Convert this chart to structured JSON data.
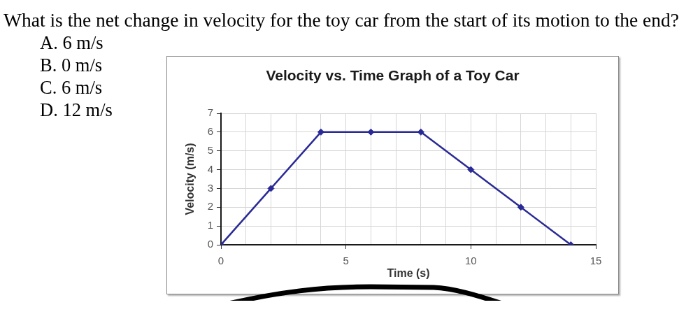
{
  "chart_data": {
    "type": "line",
    "title": "Velocity vs. Time Graph of a Toy Car",
    "xlabel": "Time (s)",
    "ylabel": "Velocity (m/s)",
    "annotations": [
      "What is the net change in velocity for the toy car from the start of its motion to the end?",
      "A. 6 m/s",
      "B. 0 m/s",
      "C. 6 m/s",
      "D. 12 m/s"
    ],
    "x": [
      0,
      2,
      4,
      6,
      8,
      10,
      12,
      14
    ],
    "series": [
      {
        "color": "#2a2a96",
        "values": [
          0,
          3,
          6,
          6,
          6,
          4,
          2,
          0
        ]
      }
    ],
    "xlim": [
      0,
      15
    ],
    "xticks": [
      0,
      {
        "value": 1,
        "label": null
      },
      {
        "value": 2,
        "label": null
      },
      {
        "value": 3,
        "label": null
      },
      {
        "value": 4,
        "label": null
      },
      5,
      {
        "value": 6,
        "label": null
      },
      {
        "value": 7,
        "label": null
      },
      {
        "value": 8,
        "label": null
      },
      {
        "value": 9,
        "label": null
      },
      10,
      {
        "value": 11,
        "label": null
      },
      {
        "value": 12,
        "label": null
      },
      {
        "value": 13,
        "label": null
      },
      {
        "value": 14,
        "label": null
      },
      15
    ],
    "ylim": [
      0,
      7
    ],
    "yticks": [
      0,
      1,
      2,
      3,
      4,
      5,
      6,
      7
    ],
    "grid": true,
    "marker": "diamond",
    "line_style": "solid"
  }
}
